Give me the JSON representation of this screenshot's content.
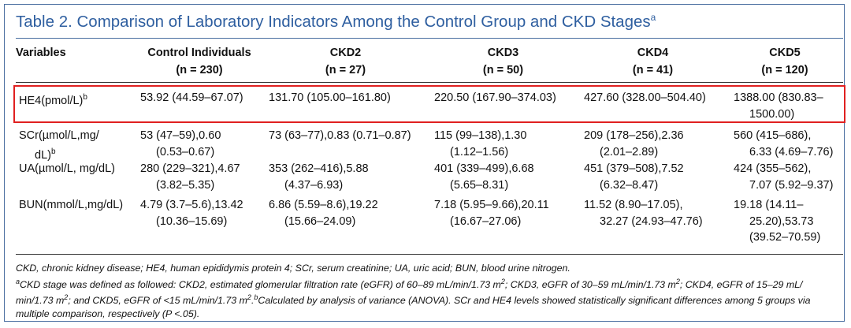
{
  "title": {
    "text": "Table 2. Comparison of Laboratory Indicators Among the Control Group and CKD Stages",
    "marker": "a"
  },
  "columns": [
    {
      "lines": [
        "Variables"
      ]
    },
    {
      "lines": [
        "Control Individuals",
        "(n = 230)"
      ]
    },
    {
      "lines": [
        "CKD2",
        "(n = 27)"
      ]
    },
    {
      "lines": [
        "CKD3",
        "(n = 50)"
      ]
    },
    {
      "lines": [
        "CKD4",
        "(n = 41)"
      ]
    },
    {
      "lines": [
        "CKD5",
        "(n = 120)"
      ]
    }
  ],
  "rows": [
    {
      "variable": {
        "lines": [
          "HE4(pmol/L)"
        ],
        "marker": "b"
      },
      "values": [
        [
          "53.92 (44.59–67.07)"
        ],
        [
          "131.70 (105.00–161.80)"
        ],
        [
          "220.50 (167.90–374.03)"
        ],
        [
          "427.60 (328.00–504.40)"
        ],
        [
          "1388.00 (830.83–",
          "1500.00)"
        ]
      ]
    },
    {
      "variable": {
        "lines": [
          "SCr(µmol/L,mg/",
          "dL)"
        ],
        "marker": "b"
      },
      "values": [
        [
          "53 (47–59),0.60",
          "(0.53–0.67)"
        ],
        [
          "73 (63–77),0.83 (0.71–0.87)"
        ],
        [
          "115 (99–138),1.30",
          "(1.12–1.56)"
        ],
        [
          "209 (178–256),2.36",
          "(2.01–2.89)"
        ],
        [
          "560 (415–686),",
          "6.33 (4.69–7.76)"
        ]
      ]
    },
    {
      "variable": {
        "lines": [
          "UA(µmol/L, mg/dL)"
        ],
        "marker": ""
      },
      "values": [
        [
          "280 (229–321),4.67",
          "(3.82–5.35)"
        ],
        [
          "353 (262–416),5.88",
          "(4.37–6.93)"
        ],
        [
          "401 (339–499),6.68",
          "(5.65–8.31)"
        ],
        [
          "451 (379–508),7.52",
          "(6.32–8.47)"
        ],
        [
          "424 (355–562),",
          "7.07 (5.92–9.37)"
        ]
      ]
    },
    {
      "variable": {
        "lines": [
          "BUN(mmol/L,mg/dL)"
        ],
        "marker": ""
      },
      "values": [
        [
          "4.79 (3.7–5.6),13.42",
          "(10.36–15.69)"
        ],
        [
          "6.86 (5.59–8.6),19.22",
          "(15.66–24.09)"
        ],
        [
          "7.18 (5.95–9.66),20.11",
          "(16.67–27.06)"
        ],
        [
          "11.52 (8.90–17.05),",
          "32.27 (24.93–47.76)"
        ],
        [
          "19.18 (14.11–",
          "25.20),53.73",
          "(39.52–70.59)"
        ]
      ]
    }
  ],
  "footnotes": {
    "abbrev": "CKD, chronic kidney disease; HE4, human epididymis protein 4; SCr, serum creatinine; UA, uric acid; BUN, blood urine nitrogen.",
    "a_marker": "a",
    "a_text_1": "CKD stage was defined as followed: CKD2, estimated glomerular filtration rate (eGFR) of 60–89 mL/min/1.73 m",
    "a_text_2": "; CKD3, eGFR of 30–59 mL/min/1.73 m",
    "a_text_3": "; CKD4, eGFR of 15–29 mL/",
    "a_text_4": "min/1.73 m",
    "a_text_5": "; and CKD5, eGFR of <15 mL/min/1.73 m",
    "a_text_6": ".",
    "b_marker": "b",
    "b_text_1": "Calculated by analysis of variance (ANOVA). SCr and HE4 levels showed statistically significant differences among 5 groups via",
    "b_text_2": "multiple comparison, respectively (P <.05).",
    "sq": "2"
  },
  "colors": {
    "title": "#2f5fa0",
    "frame": "#4a6ea0",
    "highlight": "#e02020"
  }
}
